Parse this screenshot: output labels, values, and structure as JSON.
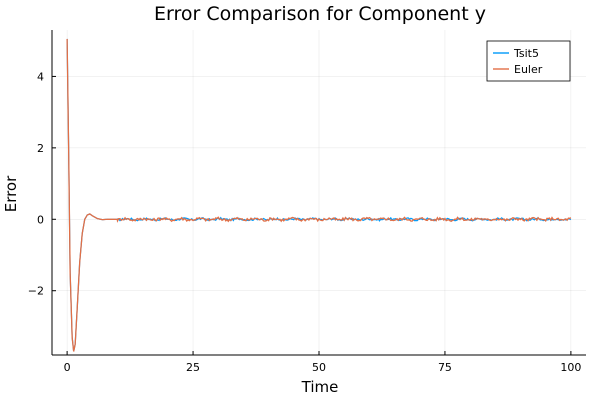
{
  "chart_data": {
    "type": "line",
    "title": "Error Comparison for Component y",
    "xlabel": "Time",
    "ylabel": "Error",
    "xlim": [
      -3,
      103
    ],
    "ylim": [
      -3.8,
      5.3
    ],
    "xticks": [
      0,
      25,
      50,
      75,
      100
    ],
    "yticks": [
      -2,
      0,
      2,
      4
    ],
    "ytick_labels": [
      "−2",
      "0",
      "2",
      "4"
    ],
    "grid": true,
    "legend_position": "top-right",
    "series": [
      {
        "name": "Tsit5",
        "color": "#009af9",
        "noise": 0.03,
        "x": [
          0,
          0.3,
          0.6,
          1.0,
          1.3,
          1.6,
          2.0,
          2.5,
          3.0,
          3.5,
          4.0,
          4.5,
          5.0,
          6.0,
          7.0,
          8.0,
          10.0
        ],
        "y": [
          5.05,
          2.0,
          -1.5,
          -3.3,
          -3.7,
          -3.5,
          -2.5,
          -1.2,
          -0.4,
          0.0,
          0.12,
          0.15,
          0.1,
          0.02,
          -0.01,
          0.0,
          0.0
        ]
      },
      {
        "name": "Euler",
        "color": "#e26f46",
        "noise": 0.04,
        "x": [
          0,
          0.3,
          0.6,
          1.0,
          1.3,
          1.6,
          2.0,
          2.5,
          3.0,
          3.5,
          4.0,
          4.5,
          5.0,
          6.0,
          7.0,
          8.0,
          10.0
        ],
        "y": [
          5.05,
          2.0,
          -1.5,
          -3.3,
          -3.7,
          -3.5,
          -2.5,
          -1.2,
          -0.4,
          0.0,
          0.12,
          0.15,
          0.1,
          0.02,
          -0.01,
          0.0,
          0.0
        ]
      }
    ]
  }
}
